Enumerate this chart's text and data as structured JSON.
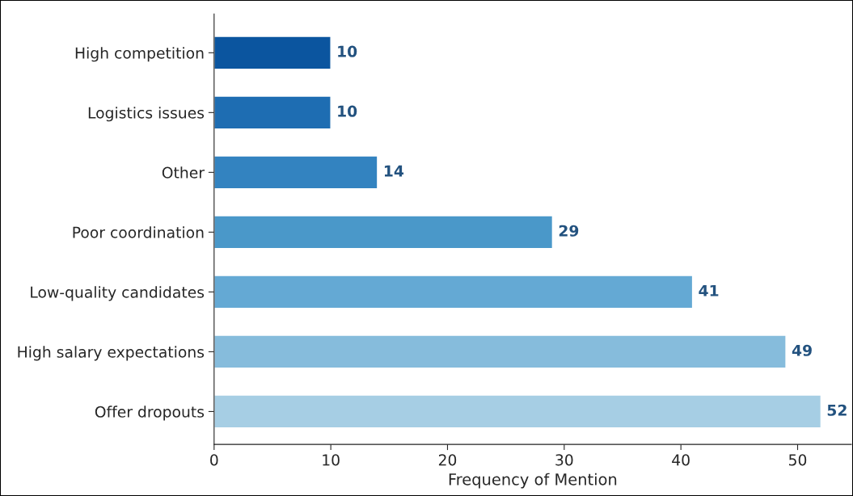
{
  "chart_data": {
    "type": "bar",
    "orientation": "horizontal",
    "xlabel": "Frequency of Mention",
    "categories": [
      "High competition",
      "Logistics issues",
      "Other",
      "Poor coordination",
      "Low-quality candidates",
      "High salary expectations",
      "Offer dropouts"
    ],
    "values": [
      10,
      10,
      14,
      29,
      41,
      49,
      52
    ],
    "colors": [
      "#0b559f",
      "#1e6db2",
      "#3383c0",
      "#4a98c9",
      "#64a9d4",
      "#86bcdc",
      "#a6cee4"
    ],
    "xlim": [
      0,
      54.6
    ],
    "xticks": [
      0,
      10,
      20,
      30,
      40,
      50
    ],
    "data_labels": true,
    "grid": false,
    "legend": false
  }
}
